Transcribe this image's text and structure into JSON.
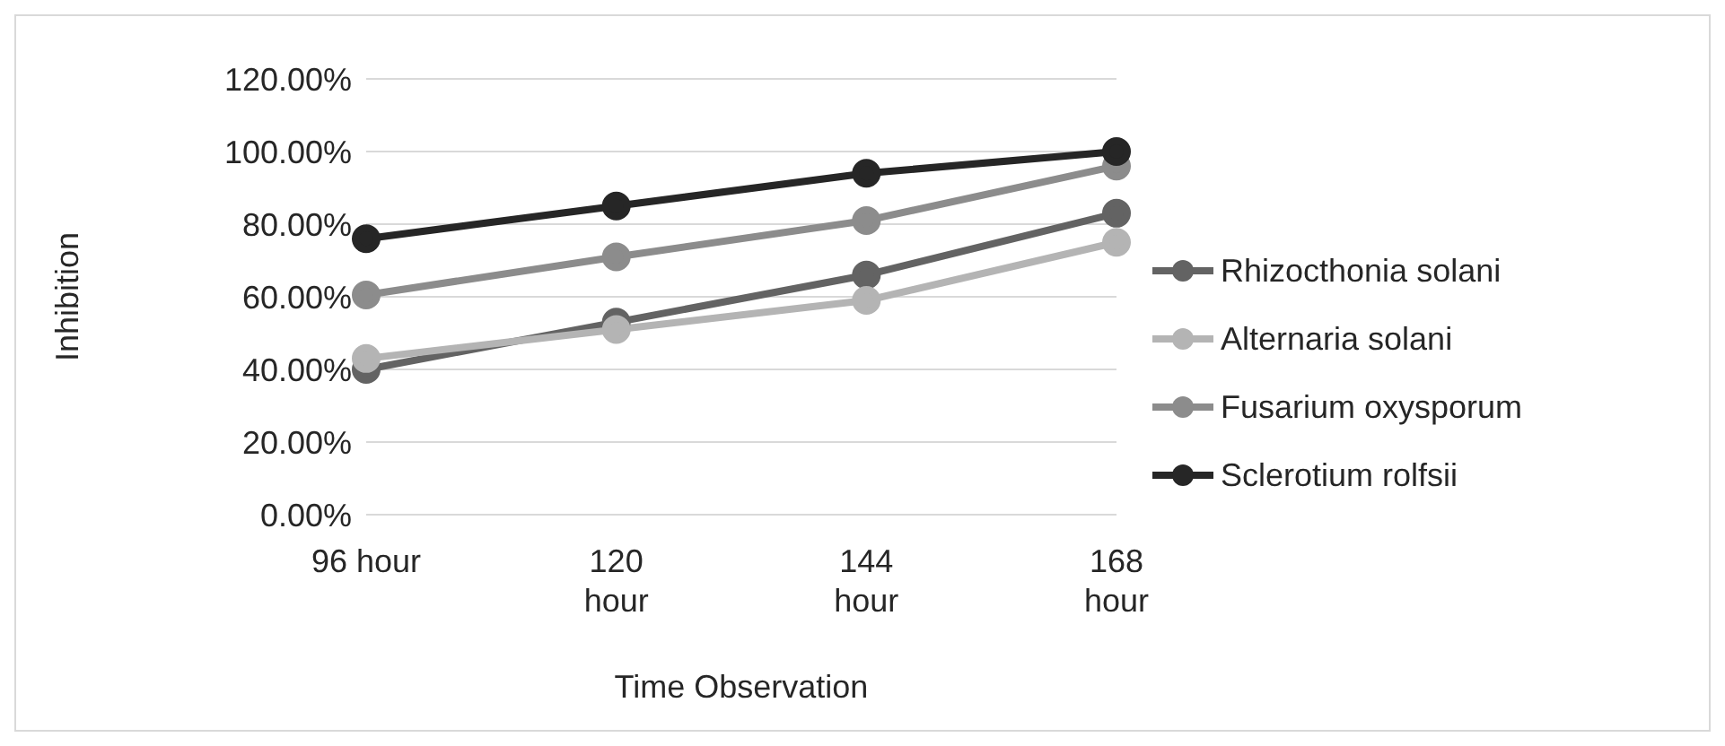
{
  "chart_data": {
    "type": "line",
    "xlabel": "Time Observation",
    "ylabel": "Inhibition",
    "categories": [
      "96 hour",
      "120 hour",
      "144 hour",
      "168 hour"
    ],
    "series": [
      {
        "name": "Rhizocthonia solani",
        "color": "#636363",
        "values": [
          40,
          53,
          66,
          83
        ]
      },
      {
        "name": "Alternaria solani",
        "color": "#b4b4b4",
        "values": [
          43,
          51,
          59,
          75
        ]
      },
      {
        "name": "Fusarium oxysporum",
        "color": "#8c8c8c",
        "values": [
          60.5,
          71,
          81,
          96
        ]
      },
      {
        "name": "Sclerotium rolfsii",
        "color": "#262626",
        "values": [
          76,
          85,
          94,
          100
        ]
      }
    ],
    "ylim": [
      0,
      120
    ],
    "yticks": [
      {
        "value": 0,
        "label": "0.00%"
      },
      {
        "value": 20,
        "label": "20.00%"
      },
      {
        "value": 40,
        "label": "40.00%"
      },
      {
        "value": 60,
        "label": "60.00%"
      },
      {
        "value": 80,
        "label": "80.00%"
      },
      {
        "value": 100,
        "label": "100.00%"
      },
      {
        "value": 120,
        "label": "120.00%"
      }
    ],
    "grid": "y",
    "legend": "right",
    "marker": "circle",
    "line_style": "solid"
  }
}
